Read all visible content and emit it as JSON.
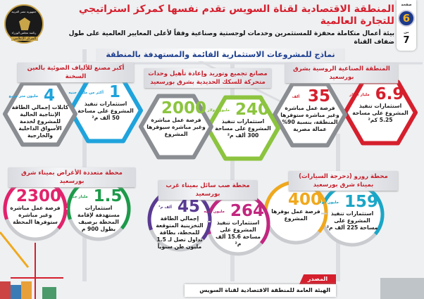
{
  "header": {
    "title": "المنطقة الاقتصادية لقناة السويس تقدم نفسها كمركز استراتيجي للتجارة العالمية",
    "subtitle": "بيئة أعمال متكاملة محفزة للمستثمرين وخدمات لوجستية وصناعية وفقاً لأعلى المعايير العالمية على طول ضفاف القناة",
    "models_label": "نماذج للمشروعات الاستثمارية القائمة والمستهدفة بالمنطقة"
  },
  "page": {
    "word": "صفحة",
    "current": "6",
    "of": "من",
    "total": "7"
  },
  "logo": {
    "top": "جمهورية مصر العربية",
    "middle": "رئاسة مجلس الوزراء",
    "bottom": "المركز الإعلامي"
  },
  "colors": {
    "red": "#d51f2d",
    "gray": "#8a8d92",
    "green": "#8cc43f",
    "blue": "#1fa3dc",
    "teal": "#1aa6c7",
    "orange": "#f0a81c",
    "magenta": "#c2267f",
    "purple": "#5a3a92",
    "pink": "#e2226c",
    "dgreen": "#1d9a4a"
  },
  "sections": {
    "russian": {
      "label": "المنطقة الصناعية الروسية بشرق بورسعيد",
      "cards": [
        {
          "value": "6.9",
          "unit": "مليار دولار",
          "desc": "استثمارات تنفيذ المشروع على مساحة 5.25 كم²"
        },
        {
          "value": "35",
          "unit": "ألف",
          "desc": "فرصة عمل مباشرة وغير مباشرة ستوفرها المنطقة، بنسبة 90% عمالة مصرية"
        }
      ]
    },
    "railway": {
      "label": "مصانع تجميع وتوريد وإعادة تأهيل وحدات متحركة للسكك الحديدية بشرق بورسعيد",
      "cards": [
        {
          "value": "240",
          "unit": "مليون دولار",
          "desc": "استثمارات تنفيذ المشروع على مساحة 300 ألف م²"
        },
        {
          "value": "2000",
          "unit": "",
          "desc": "فرصة عمل مباشرة وغير مباشرة سيوفرها المشروع"
        }
      ]
    },
    "fiber": {
      "label": "أكبر مصنع للألياف الضوئية بالعين السخنة",
      "cards": [
        {
          "value": "1",
          "unit": "أكثر من مليار جنيه",
          "desc": "استثمارات تنفيذ المشروع على مساحة 50 ألف م²"
        },
        {
          "value": "4",
          "unit": "مليون متر مربع",
          "desc": "كابلات إجمالي الطاقة الإنتاجية الحالية للمشروع لخدمة الأسواق الداخلية والخارجية"
        }
      ]
    },
    "roro": {
      "label": "محطة رورو (دحرجة السيارات) بميناء شرق بورسعيد",
      "cards": [
        {
          "value": "159",
          "unit": "مليون دولار",
          "desc": "استثمارات تنفيذ المشروع على مساحة 225 ألف م²"
        },
        {
          "value": "400",
          "unit": "",
          "desc": "فرصة عمل يوفرها المشروع"
        }
      ]
    },
    "liquid": {
      "label": "محطة صب سائل بميناء غرب بورسعيد",
      "cards": [
        {
          "value": "264",
          "unit": "مليون جنيه",
          "desc": "استثمارات تنفيذ المشروع على مساحة 15.6 ألف م²"
        },
        {
          "value": "45",
          "unit": "ألف م³",
          "desc": "إجمالي الطاقة التخزينية المتوقعة للمحطة، بطاقة تداول تصل لـ 1.5 مليون طن سنوياً"
        }
      ]
    },
    "multipurpose": {
      "label": "محطة متعددة الأغراض بميناء شرق بورسعيد",
      "cards": [
        {
          "value": "1.5",
          "unit": "مليار جنيه",
          "desc": "استثمارات مستهدفة لإقامة المحطة برصيف بطول 900 م"
        },
        {
          "value": "2300",
          "unit": "",
          "desc": "فرصة عمل مباشرة وغير مباشرة ستوفرها المحطة"
        }
      ]
    }
  },
  "source": {
    "label": "المصدر",
    "text": "الهيئة العامة للمنطقة الاقتصادية لقناة السويس"
  }
}
